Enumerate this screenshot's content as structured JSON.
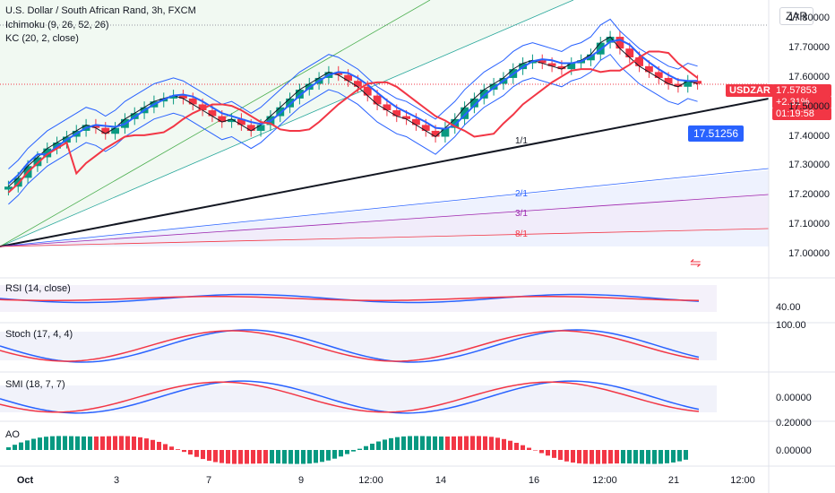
{
  "header": {
    "symbol_title": "U.S. Dollar / South African Rand, 3h, FXCM",
    "ichimoku_label": "Ichimoku (9, 26, 52, 26)",
    "kc_label": "KC (20, 2, close)",
    "currency": "ZAR"
  },
  "price_axis": {
    "ticks": [
      "17.80000",
      "17.70000",
      "17.60000",
      "17.50000",
      "17.40000",
      "17.30000",
      "17.20000",
      "17.10000",
      "17.00000"
    ]
  },
  "price_badge": {
    "symbol": "USDZAR",
    "price": "17.57853",
    "change": "+2.31%",
    "countdown": "01:19:58",
    "color": "#f23645"
  },
  "level_badge": {
    "value": "17.51256",
    "color": "#2962ff"
  },
  "gann_labels": [
    "1/1",
    "2/1",
    "3/1",
    "8/1"
  ],
  "indicators": {
    "rsi": {
      "label": "RSI (14, close)",
      "tick": "40.00"
    },
    "stoch": {
      "label": "Stoch (17, 4, 4)",
      "tick": "100.00"
    },
    "smi": {
      "label": "SMI (18, 7, 7)",
      "tick": "0.00000"
    },
    "ao": {
      "label": "AO",
      "tick_top": "0.20000",
      "tick": "0.00000"
    }
  },
  "x_axis": {
    "ticks": [
      "Oct",
      "3",
      "7",
      "9",
      "12:00",
      "14",
      "16",
      "12:00",
      "21",
      "12:00"
    ]
  },
  "colors": {
    "up": "#089981",
    "down": "#f23645",
    "kc": "#2962ff",
    "tenkan": "#2962ff",
    "kijun": "#f23645"
  },
  "chart_data": {
    "type": "candlestick",
    "title": "U.S. Dollar / South African Rand, 3h, FXCM",
    "ylim": [
      16.95,
      17.85
    ],
    "y_ticks": [
      17.8,
      17.7,
      17.6,
      17.5,
      17.4,
      17.3,
      17.2,
      17.1,
      17.0
    ],
    "x_categories": [
      "Oct",
      "3",
      "7",
      "9",
      "12:00",
      "14",
      "16",
      "12:00",
      "21",
      "12:00"
    ],
    "close_series": [
      17.23,
      17.26,
      17.3,
      17.33,
      17.36,
      17.38,
      17.4,
      17.42,
      17.44,
      17.43,
      17.41,
      17.43,
      17.46,
      17.48,
      17.5,
      17.52,
      17.53,
      17.54,
      17.53,
      17.51,
      17.49,
      17.47,
      17.45,
      17.46,
      17.44,
      17.42,
      17.44,
      17.47,
      17.5,
      17.53,
      17.56,
      17.58,
      17.6,
      17.62,
      17.61,
      17.59,
      17.57,
      17.54,
      17.51,
      17.49,
      17.47,
      17.46,
      17.44,
      17.42,
      17.4,
      17.43,
      17.46,
      17.5,
      17.53,
      17.56,
      17.58,
      17.6,
      17.63,
      17.65,
      17.66,
      17.65,
      17.64,
      17.63,
      17.65,
      17.66,
      17.68,
      17.72,
      17.74,
      17.7,
      17.67,
      17.64,
      17.62,
      17.6,
      17.58,
      17.57,
      17.59,
      17.58
    ],
    "last_price": 17.57853,
    "change_percent": "+2.31%",
    "marked_level": 17.51256,
    "rsi_ytick": 40.0,
    "stoch_ytick": 100.0,
    "smi_ytick": 0.0,
    "ao_yticks": [
      0.2,
      0.0
    ]
  }
}
